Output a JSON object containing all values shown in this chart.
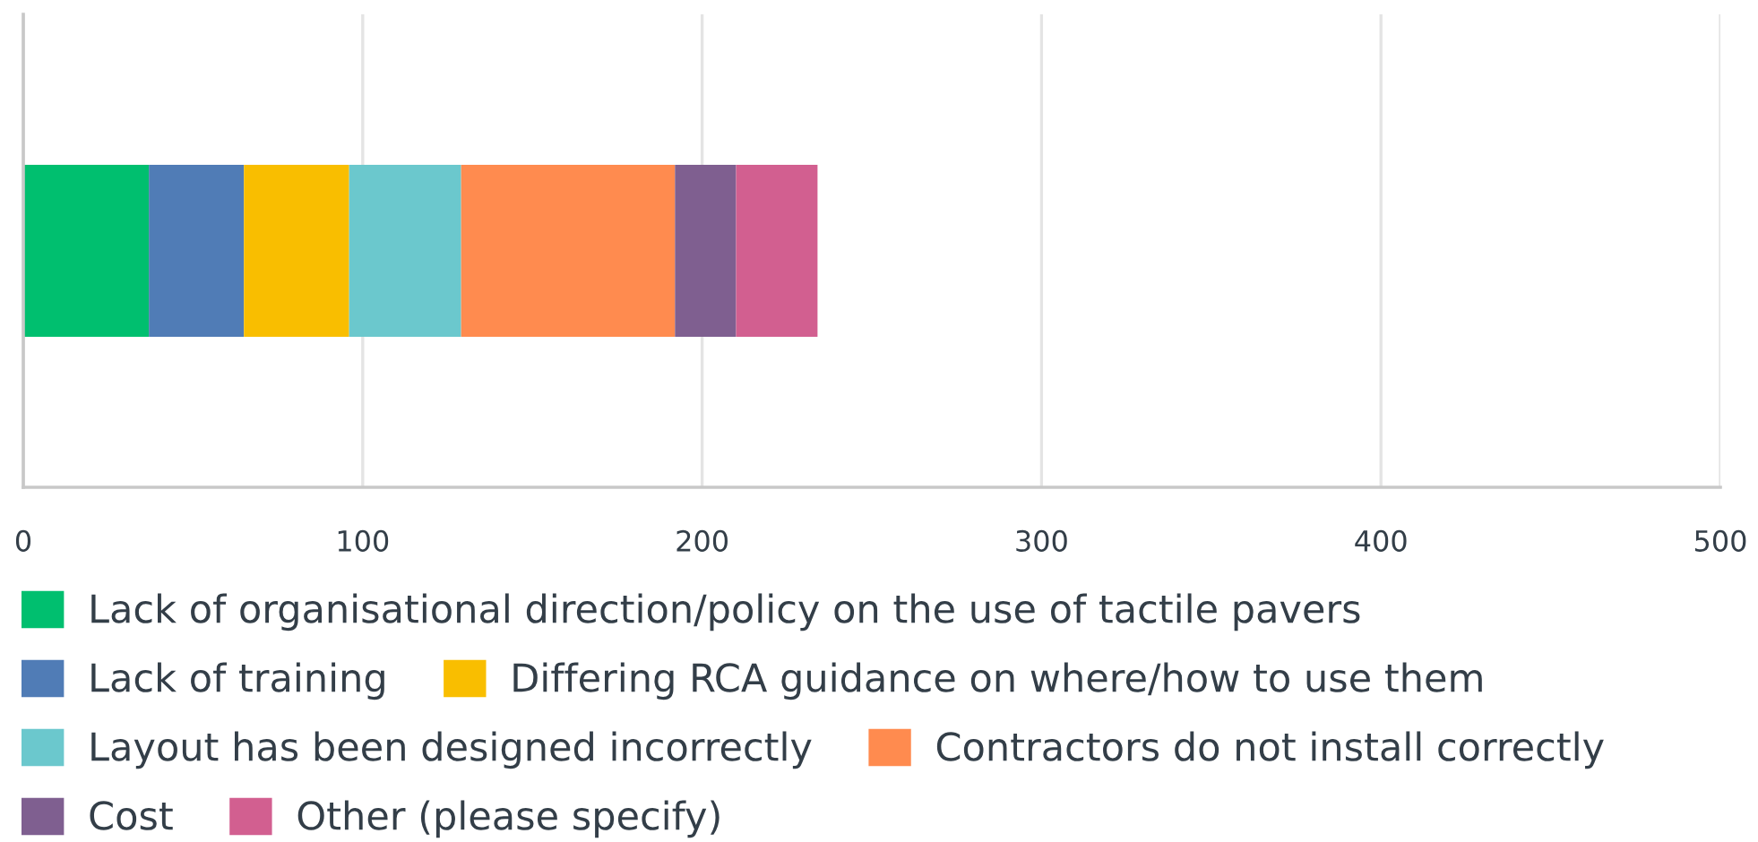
{
  "chart_data": {
    "type": "bar",
    "orientation": "horizontal",
    "stacked": true,
    "categories": [
      null
    ],
    "series": [
      {
        "name": "Lack of organisational direction/policy on the use of tactile pavers",
        "color": "#00bf6f",
        "values": [
          37
        ]
      },
      {
        "name": "Lack of training",
        "color": "#507cb6",
        "values": [
          28
        ]
      },
      {
        "name": "Differing RCA guidance on where/how to use them",
        "color": "#f9be00",
        "values": [
          31
        ]
      },
      {
        "name": "Layout has been designed incorrectly",
        "color": "#6bc8cd",
        "values": [
          33
        ]
      },
      {
        "name": "Contractors do not install correctly",
        "color": "#ff8b4f",
        "values": [
          63
        ]
      },
      {
        "name": "Cost",
        "color": "#7f5f90",
        "values": [
          18
        ]
      },
      {
        "name": "Other (please specify)",
        "color": "#d25f90",
        "values": [
          24
        ]
      }
    ],
    "xlim": [
      0,
      500
    ],
    "xticks": [
      0,
      100,
      200,
      300,
      400,
      500
    ],
    "grid": "x",
    "legend": "bottom"
  }
}
